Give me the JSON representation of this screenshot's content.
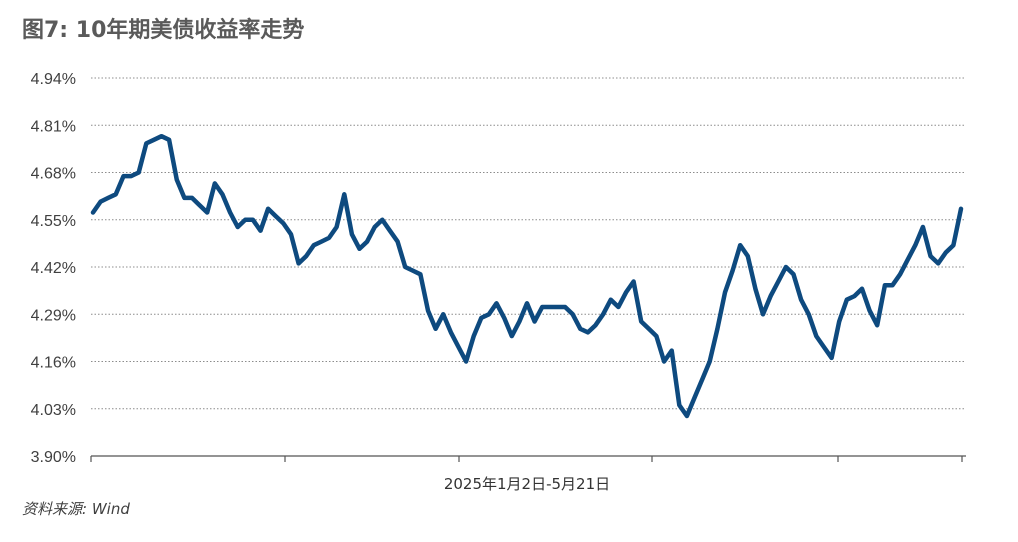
{
  "title": "图7: 10年期美债收益率走势",
  "source": "资料来源: Wind",
  "chart_data": {
    "type": "line",
    "title": "图7: 10年期美债收益率走势",
    "xlabel": "2025年1月2日-5月21日",
    "ylabel": "",
    "y_ticks": [
      "4.94%",
      "4.81%",
      "4.68%",
      "4.55%",
      "4.42%",
      "4.29%",
      "4.16%",
      "4.03%",
      "3.90%"
    ],
    "ylim": [
      3.9,
      4.94
    ],
    "grid": true,
    "line_color": "#0e4a7f",
    "series": [
      {
        "values": [
          4.57,
          4.6,
          4.61,
          4.62,
          4.67,
          4.67,
          4.68,
          4.76,
          4.77,
          4.78,
          4.77,
          4.66,
          4.61,
          4.61,
          4.59,
          4.57,
          4.65,
          4.62,
          4.57,
          4.53,
          4.55,
          4.55,
          4.52,
          4.58,
          4.56,
          4.54,
          4.51,
          4.43,
          4.45,
          4.48,
          4.49,
          4.5,
          4.53,
          4.62,
          4.51,
          4.47,
          4.49,
          4.53,
          4.55,
          4.52,
          4.49,
          4.42,
          4.41,
          4.4,
          4.3,
          4.25,
          4.29,
          4.24,
          4.2,
          4.16,
          4.23,
          4.28,
          4.29,
          4.32,
          4.28,
          4.23,
          4.27,
          4.32,
          4.27,
          4.31,
          4.31,
          4.31,
          4.31,
          4.29,
          4.25,
          4.24,
          4.26,
          4.29,
          4.33,
          4.31,
          4.35,
          4.38,
          4.27,
          4.25,
          4.23,
          4.16,
          4.19,
          4.04,
          4.01,
          4.06,
          4.11,
          4.16,
          4.25,
          4.35,
          4.41,
          4.48,
          4.45,
          4.36,
          4.29,
          4.34,
          4.38,
          4.42,
          4.4,
          4.33,
          4.29,
          4.23,
          4.2,
          4.17,
          4.27,
          4.33,
          4.34,
          4.36,
          4.3,
          4.26,
          4.37,
          4.37,
          4.4,
          4.44,
          4.48,
          4.53,
          4.45,
          4.43,
          4.46,
          4.48,
          4.58
        ]
      }
    ]
  }
}
